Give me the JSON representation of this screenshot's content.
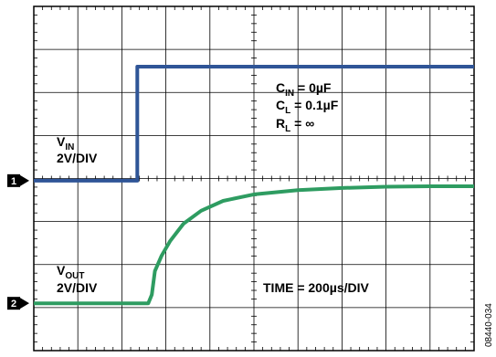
{
  "chart_data": {
    "type": "line",
    "grid": true,
    "divisions": {
      "x": 10,
      "y": 8
    },
    "colors": {
      "ch1": "#2f5597",
      "ch2": "#2e9c61",
      "grid": "#000000",
      "marker": "#000000"
    },
    "annotations": {
      "vin_label": {
        "main": "V",
        "sub": "IN"
      },
      "vin_scale": "2V/DIV",
      "vout_label": {
        "main": "V",
        "sub": "OUT"
      },
      "vout_scale": "2V/DIV",
      "cin": {
        "main": "C",
        "sub": "IN",
        "rest": " = 0µF"
      },
      "cl": {
        "main": "C",
        "sub": "L",
        "rest": " = 0.1µF"
      },
      "rl": {
        "main": "R",
        "sub": "L",
        "rest": " = ∞"
      },
      "time": "TIME = 200µs/DIV",
      "figure_code": "08440-034"
    },
    "channel_markers": [
      "1",
      "2"
    ],
    "series": [
      {
        "channel": "1",
        "x_div": [
          0,
          2.35,
          2.35,
          10
        ],
        "y_div": [
          3.95,
          3.95,
          6.6,
          6.6
        ]
      },
      {
        "channel": "2",
        "x_div": [
          0,
          2.6,
          2.68,
          2.75,
          2.9,
          3.1,
          3.4,
          3.8,
          4.3,
          5.0,
          6.0,
          7.0,
          8.0,
          9.0,
          10
        ],
        "y_div": [
          1.1,
          1.1,
          1.3,
          1.85,
          2.2,
          2.55,
          2.95,
          3.25,
          3.48,
          3.63,
          3.73,
          3.78,
          3.81,
          3.82,
          3.82
        ]
      }
    ]
  }
}
